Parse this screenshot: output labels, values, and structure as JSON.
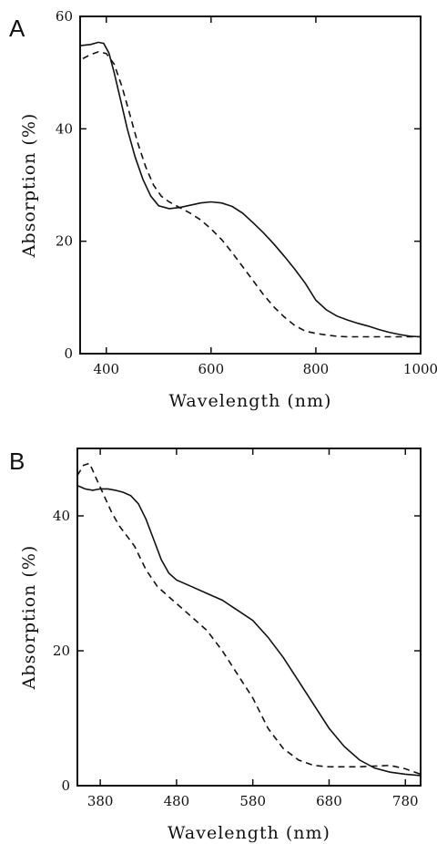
{
  "chart_data": [
    {
      "type": "line",
      "panel": "A",
      "xlabel": "Wavelength (nm)",
      "ylabel": "Absorption (%)",
      "xlim": [
        350,
        1000
      ],
      "ylim": [
        0,
        60
      ],
      "xticks": [
        400,
        600,
        800,
        1000
      ],
      "yticks": [
        0,
        20,
        40,
        60
      ],
      "series": [
        {
          "style": "solid",
          "x": [
            350,
            370,
            385,
            395,
            405,
            415,
            425,
            440,
            455,
            470,
            485,
            500,
            520,
            540,
            560,
            580,
            600,
            620,
            640,
            660,
            680,
            700,
            720,
            740,
            760,
            780,
            800,
            820,
            840,
            860,
            880,
            900,
            920,
            940,
            960,
            980,
            1000
          ],
          "y": [
            54.8,
            55.0,
            55.4,
            55.2,
            53.5,
            50,
            46,
            40,
            35,
            31,
            28,
            26.3,
            25.8,
            26.0,
            26.4,
            26.8,
            27.0,
            26.8,
            26.2,
            25,
            23.3,
            21.5,
            19.5,
            17.3,
            15,
            12.5,
            9.5,
            7.8,
            6.7,
            6,
            5.4,
            4.9,
            4.3,
            3.8,
            3.4,
            3.1,
            3.0
          ]
        },
        {
          "style": "dashed",
          "x": [
            355,
            370,
            385,
            400,
            415,
            430,
            445,
            460,
            475,
            490,
            505,
            520,
            540,
            560,
            580,
            600,
            620,
            640,
            660,
            680,
            700,
            720,
            740,
            760,
            780,
            800,
            820,
            840,
            860,
            880,
            900,
            920,
            940,
            960,
            980,
            1000
          ],
          "y": [
            52.5,
            53.2,
            53.7,
            53.4,
            51.5,
            47.5,
            42.5,
            37.5,
            33.3,
            30.0,
            28.0,
            27.0,
            26.0,
            25.0,
            23.8,
            22.2,
            20.3,
            18.0,
            15.5,
            13.0,
            10.5,
            8.3,
            6.5,
            5.0,
            4.0,
            3.6,
            3.3,
            3.1,
            3.0,
            3.0,
            3.0,
            3.0,
            3.0,
            3.0,
            3.0,
            3.0
          ]
        }
      ]
    },
    {
      "type": "line",
      "panel": "B",
      "xlabel": "Wavelength (nm)",
      "ylabel": "Absorption (%)",
      "xlim": [
        350,
        800
      ],
      "ylim": [
        0,
        50
      ],
      "xticks": [
        380,
        480,
        580,
        680,
        780
      ],
      "yticks": [
        0,
        20,
        40
      ],
      "series": [
        {
          "style": "solid",
          "x": [
            350,
            360,
            370,
            380,
            390,
            400,
            410,
            420,
            430,
            440,
            450,
            460,
            470,
            480,
            500,
            520,
            540,
            560,
            580,
            600,
            620,
            640,
            660,
            680,
            700,
            720,
            740,
            760,
            780,
            800
          ],
          "y": [
            44.5,
            44.0,
            43.8,
            44.0,
            44.0,
            43.8,
            43.5,
            43.0,
            41.8,
            39.5,
            36.5,
            33.5,
            31.5,
            30.5,
            29.5,
            28.5,
            27.5,
            26.0,
            24.5,
            22.0,
            19.0,
            15.5,
            12.0,
            8.5,
            5.8,
            3.8,
            2.6,
            2.0,
            1.7,
            1.5
          ]
        },
        {
          "style": "dashed",
          "x": [
            350,
            358,
            366,
            375,
            385,
            395,
            405,
            415,
            425,
            440,
            455,
            470,
            485,
            500,
            520,
            540,
            560,
            580,
            600,
            620,
            640,
            660,
            680,
            700,
            720,
            740,
            760,
            780,
            800
          ],
          "y": [
            46.0,
            47.5,
            47.8,
            45.5,
            43.0,
            40.5,
            38.5,
            37.0,
            35.5,
            32.0,
            29.5,
            28.0,
            26.5,
            25.0,
            23.0,
            20.0,
            16.5,
            13.0,
            8.5,
            5.5,
            3.8,
            3.0,
            2.8,
            2.8,
            2.8,
            2.9,
            3.0,
            2.5,
            1.7
          ]
        }
      ]
    }
  ]
}
